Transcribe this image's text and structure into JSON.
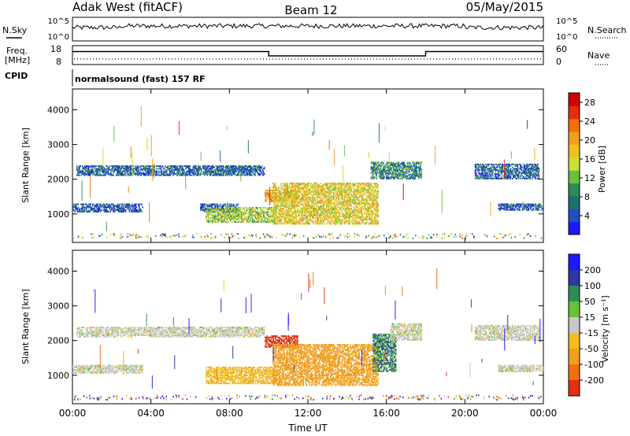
{
  "header": {
    "site": "Adak West (fitACF)",
    "beam": "Beam 12",
    "date": "05/May/2015"
  },
  "top_panels": {
    "nsky_label": "N.Sky",
    "nsky_ticks": [
      "10^5",
      "10^0"
    ],
    "nsearch_label": "N.Search",
    "nsearch_ticks": [
      "10^5",
      "10^0"
    ],
    "freq_label_1": "Freq.",
    "freq_label_2": "[MHz]",
    "freq_ticks": [
      "18",
      "8"
    ],
    "nave_label": "Nave",
    "nave_ticks": [
      "60",
      "0"
    ],
    "cpid_label": "CPID",
    "cpid_text": "normalsound (fast) 157 RF",
    "freq_steps": [
      {
        "start_hour": 0,
        "end_hour": 10.0,
        "mhz": 15.6
      },
      {
        "start_hour": 10.0,
        "end_hour": 18.0,
        "mhz": 12.4
      },
      {
        "start_hour": 18.0,
        "end_hour": 24.0,
        "mhz": 15.6
      }
    ]
  },
  "chart_data": [
    {
      "type": "heatmap",
      "title": "",
      "xlabel": "Time UT",
      "ylabel": "Slant Range [km]",
      "x_ticks": [
        "00:00",
        "04:00",
        "08:00",
        "12:00",
        "16:00",
        "20:00",
        "00:00"
      ],
      "x_tick_hours": [
        0,
        4,
        8,
        12,
        16,
        20,
        24
      ],
      "y_ticks": [
        1000,
        2000,
        3000,
        4000
      ],
      "ylim": [
        180,
        4600
      ],
      "xlim_hours": [
        0,
        24
      ],
      "colorbar": {
        "label": "Power [dB]",
        "ticks": [
          "28",
          "24",
          "20",
          "16",
          "12",
          "8",
          "4"
        ],
        "tick_values": [
          28,
          24,
          20,
          16,
          12,
          8,
          4
        ],
        "range": [
          0,
          30
        ],
        "colors": [
          "#1a1aff",
          "#2050c0",
          "#1f6f6f",
          "#2e8b57",
          "#6abf3c",
          "#c8e03a",
          "#f0c020",
          "#f0a020",
          "#f07010",
          "#e03010",
          "#d00000"
        ]
      },
      "echo_regions": [
        {
          "name": "band-2200-early",
          "t0": 0.2,
          "t1": 9.8,
          "r0": 2100,
          "r1": 2400,
          "level": 6
        },
        {
          "name": "band-1200-early",
          "t0": 0.0,
          "t1": 3.6,
          "r0": 1050,
          "r1": 1300,
          "level": 5
        },
        {
          "name": "band-1200-mid",
          "t0": 6.5,
          "t1": 8.5,
          "r0": 1050,
          "r1": 1300,
          "level": 5
        },
        {
          "name": "oblique-rise",
          "t0": 6.8,
          "t1": 10.3,
          "r0": 750,
          "r1": 1200,
          "level": 14
        },
        {
          "name": "patch-1600",
          "t0": 9.8,
          "t1": 11.5,
          "r0": 1350,
          "r1": 1700,
          "level": 20
        },
        {
          "name": "main-late",
          "t0": 10.2,
          "t1": 15.6,
          "r0": 700,
          "r1": 1900,
          "level": 17
        },
        {
          "name": "band-2200-late",
          "t0": 15.2,
          "t1": 17.8,
          "r0": 2000,
          "r1": 2500,
          "level": 8
        },
        {
          "name": "band-2200-evening",
          "t0": 20.5,
          "t1": 23.8,
          "r0": 2000,
          "r1": 2450,
          "level": 6
        },
        {
          "name": "band-1200-late",
          "t0": 21.7,
          "t1": 24.0,
          "r0": 1100,
          "r1": 1300,
          "level": 5
        }
      ]
    },
    {
      "type": "heatmap",
      "title": "",
      "xlabel": "Time UT",
      "ylabel": "Slant Range [km]",
      "x_ticks": [
        "00:00",
        "04:00",
        "08:00",
        "12:00",
        "16:00",
        "20:00",
        "00:00"
      ],
      "x_tick_hours": [
        0,
        4,
        8,
        12,
        16,
        20,
        24
      ],
      "y_ticks": [
        1000,
        2000,
        3000,
        4000
      ],
      "ylim": [
        180,
        4600
      ],
      "xlim_hours": [
        0,
        24
      ],
      "colorbar": {
        "label": "Velocity [m s⁻¹]",
        "ticks": [
          "200",
          "100",
          "50",
          "15",
          "-15",
          "-50",
          "-100",
          "-200"
        ],
        "tick_values": [
          200,
          100,
          50,
          15,
          -15,
          -50,
          -100,
          -200
        ],
        "colors": [
          "#1a1aff",
          "#2c3aa0",
          "#2e8b57",
          "#6abf3c",
          "#c8c8c8",
          "#f0c020",
          "#f0a020",
          "#f07010",
          "#e03010",
          "#d00000"
        ]
      },
      "echo_regions": [
        {
          "name": "band-2200-early",
          "t0": 0.2,
          "t1": 9.8,
          "r0": 2100,
          "r1": 2400,
          "velocity": 0
        },
        {
          "name": "band-1200-early",
          "t0": 0.0,
          "t1": 3.6,
          "r0": 1050,
          "r1": 1300,
          "velocity": 0
        },
        {
          "name": "oblique-rise",
          "t0": 6.8,
          "t1": 10.3,
          "r0": 750,
          "r1": 1250,
          "velocity": -40
        },
        {
          "name": "patch-2000",
          "t0": 9.8,
          "t1": 11.5,
          "r0": 1800,
          "r1": 2150,
          "velocity": -180
        },
        {
          "name": "main-late",
          "t0": 10.2,
          "t1": 15.6,
          "r0": 700,
          "r1": 1900,
          "velocity": -70
        },
        {
          "name": "green-late",
          "t0": 15.3,
          "t1": 16.5,
          "r0": 1100,
          "r1": 2200,
          "velocity": 40
        },
        {
          "name": "band-2200-late",
          "t0": 16.2,
          "t1": 17.8,
          "r0": 2000,
          "r1": 2500,
          "velocity": 0
        },
        {
          "name": "band-2200-evening",
          "t0": 20.5,
          "t1": 23.8,
          "r0": 2000,
          "r1": 2450,
          "velocity": 0
        },
        {
          "name": "band-1200-late",
          "t0": 21.7,
          "t1": 24.0,
          "r0": 1100,
          "r1": 1300,
          "velocity": 0
        }
      ]
    }
  ]
}
